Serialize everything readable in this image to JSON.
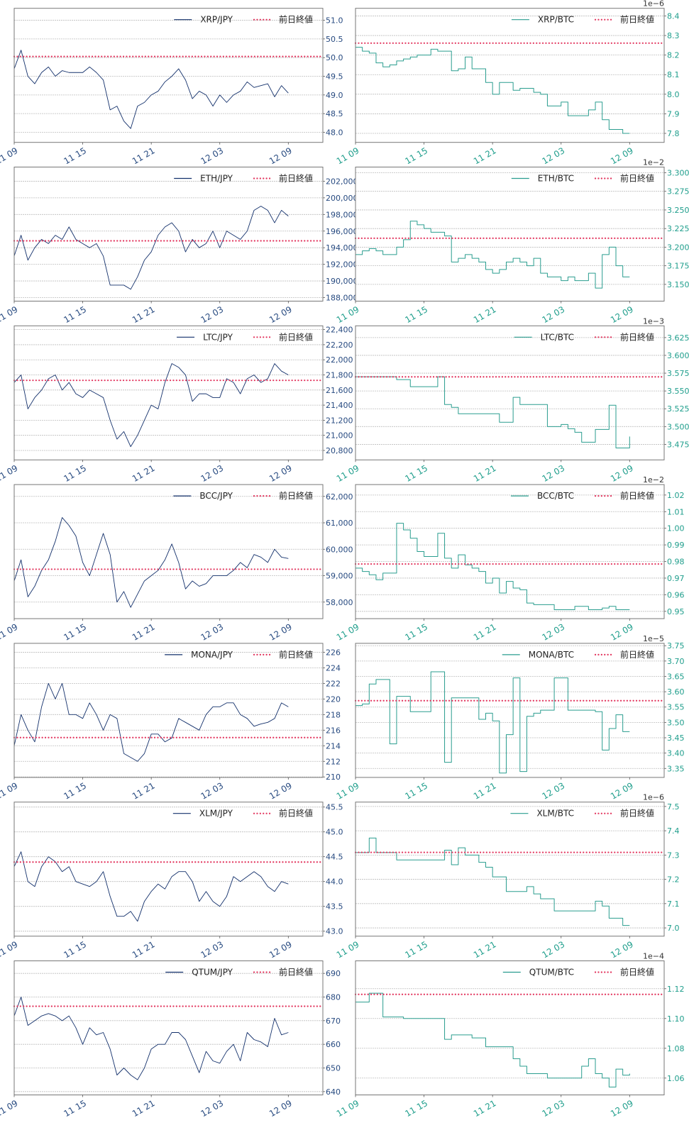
{
  "x_tick_labels": [
    "11 09",
    "11 15",
    "11 21",
    "12 03",
    "12 09"
  ],
  "prev_close_label": "前日終値",
  "colors": {
    "jpy_series": "#13306b",
    "btc_series": "#2a9d8f",
    "prev_close": "#e2335c",
    "jpy_ticks": "#274a80",
    "btc_ticks": "#1f9e8c",
    "grid": "#bdbdbd",
    "frame": "#777777"
  },
  "chart_data": [
    {
      "type": "line",
      "series_name": "XRP/JPY",
      "quote": "JPY",
      "step": false,
      "legend": "top-right",
      "grid": "horizontal",
      "x_start": "11 09",
      "x_end": "12 09",
      "ylim": [
        47.73,
        51.32
      ],
      "prev_close": 50.03,
      "yticks": [
        48.0,
        48.5,
        49.0,
        49.5,
        50.0,
        50.5,
        51.0
      ],
      "ytick_labels": [
        "48.0",
        "48.5",
        "49.0",
        "49.5",
        "50.0",
        "50.5",
        "51.0"
      ],
      "values": [
        49.7,
        50.2,
        49.5,
        49.3,
        49.6,
        49.75,
        49.5,
        49.65,
        49.6,
        49.6,
        49.6,
        49.75,
        49.6,
        49.4,
        48.6,
        48.7,
        48.3,
        48.1,
        48.7,
        48.8,
        49.0,
        49.1,
        49.35,
        49.5,
        49.7,
        49.4,
        48.9,
        49.1,
        49.0,
        48.7,
        49.0,
        48.8,
        49.0,
        49.1,
        49.35,
        49.2,
        49.25,
        49.3,
        48.95,
        49.25,
        49.05
      ]
    },
    {
      "type": "line",
      "series_name": "XRP/BTC",
      "quote": "BTC",
      "step": true,
      "legend": "top-right",
      "grid": "horizontal",
      "x_start": "11 09",
      "x_end": "12 09",
      "offset_label": "1e−6",
      "ylim": [
        7.754,
        8.439
      ],
      "prev_close": 8.261,
      "yticks": [
        7.8,
        7.9,
        8.0,
        8.1,
        8.2,
        8.3,
        8.4
      ],
      "ytick_labels": [
        "7.8",
        "7.9",
        "8.0",
        "8.1",
        "8.2",
        "8.3",
        "8.4"
      ],
      "values": [
        8.24,
        8.22,
        8.21,
        8.16,
        8.14,
        8.15,
        8.17,
        8.18,
        8.19,
        8.2,
        8.2,
        8.23,
        8.22,
        8.22,
        8.12,
        8.13,
        8.19,
        8.13,
        8.13,
        8.06,
        8.0,
        8.06,
        8.06,
        8.02,
        8.03,
        8.03,
        8.01,
        8.0,
        7.94,
        7.94,
        7.96,
        7.89,
        7.89,
        7.89,
        7.92,
        7.96,
        7.87,
        7.82,
        7.82,
        7.8,
        7.8
      ]
    },
    {
      "type": "line",
      "series_name": "ETH/JPY",
      "quote": "JPY",
      "step": false,
      "legend": "top-right",
      "grid": "horizontal",
      "x_start": "11 09",
      "x_end": "12 09",
      "ylim": [
        187575,
        203700
      ],
      "prev_close": 194830,
      "yticks": [
        188000,
        190000,
        192000,
        194000,
        196000,
        198000,
        200000,
        202000
      ],
      "ytick_labels": [
        "188,000",
        "190,000",
        "192,000",
        "194,000",
        "196,000",
        "198,000",
        "200,000",
        "202,000"
      ],
      "values": [
        193000,
        195500,
        192500,
        194000,
        195000,
        194500,
        195500,
        195000,
        196500,
        195000,
        194500,
        194000,
        194500,
        193000,
        189500,
        189500,
        189500,
        189000,
        190500,
        192500,
        193500,
        195500,
        196500,
        197000,
        196000,
        193500,
        195000,
        194000,
        194500,
        196000,
        194000,
        196000,
        195500,
        195000,
        196000,
        198500,
        199000,
        198500,
        197000,
        198500,
        197800
      ]
    },
    {
      "type": "line",
      "series_name": "ETH/BTC",
      "quote": "BTC",
      "step": true,
      "legend": "top-right",
      "grid": "horizontal",
      "x_start": "11 09",
      "x_end": "12 09",
      "offset_label": "1e−2",
      "ylim": [
        3.1275,
        3.3076
      ],
      "prev_close": 3.212,
      "yticks": [
        3.15,
        3.175,
        3.2,
        3.225,
        3.25,
        3.275,
        3.3
      ],
      "ytick_labels": [
        "3.150",
        "3.175",
        "3.200",
        "3.225",
        "3.250",
        "3.275",
        "3.300"
      ],
      "values": [
        3.19,
        3.195,
        3.198,
        3.195,
        3.19,
        3.19,
        3.2,
        3.21,
        3.235,
        3.23,
        3.225,
        3.22,
        3.22,
        3.215,
        3.18,
        3.185,
        3.19,
        3.185,
        3.18,
        3.17,
        3.165,
        3.17,
        3.18,
        3.185,
        3.18,
        3.175,
        3.185,
        3.165,
        3.16,
        3.16,
        3.155,
        3.16,
        3.155,
        3.155,
        3.165,
        3.145,
        3.19,
        3.2,
        3.175,
        3.16,
        3.16
      ]
    },
    {
      "type": "line",
      "series_name": "LTC/JPY",
      "quote": "JPY",
      "step": false,
      "legend": "top-right",
      "grid": "horizontal",
      "x_start": "11 09",
      "x_end": "12 09",
      "ylim": [
        20675,
        22450
      ],
      "prev_close": 21728,
      "yticks": [
        20800,
        21000,
        21200,
        21400,
        21600,
        21800,
        22000,
        22200,
        22400
      ],
      "ytick_labels": [
        "20,800",
        "21,000",
        "21,200",
        "21,400",
        "21,600",
        "21,800",
        "22,000",
        "22,200",
        "22,400"
      ],
      "values": [
        21700,
        21800,
        21350,
        21500,
        21600,
        21750,
        21800,
        21600,
        21700,
        21550,
        21500,
        21600,
        21550,
        21500,
        21200,
        20950,
        21050,
        20850,
        21000,
        21200,
        21400,
        21350,
        21700,
        21950,
        21900,
        21800,
        21450,
        21550,
        21550,
        21500,
        21500,
        21750,
        21700,
        21550,
        21750,
        21800,
        21700,
        21750,
        21950,
        21850,
        21800
      ]
    },
    {
      "type": "line",
      "series_name": "LTC/BTC",
      "quote": "BTC",
      "step": true,
      "legend": "top-right",
      "grid": "horizontal",
      "x_start": "11 09",
      "x_end": "12 09",
      "offset_label": "1e−3",
      "ylim": [
        3.4532,
        3.6415
      ],
      "prev_close": 3.5698,
      "yticks": [
        3.475,
        3.5,
        3.525,
        3.55,
        3.575,
        3.6,
        3.625
      ],
      "ytick_labels": [
        "3.475",
        "3.500",
        "3.525",
        "3.550",
        "3.575",
        "3.600",
        "3.625"
      ],
      "values": [
        3.57,
        3.57,
        3.57,
        3.57,
        3.57,
        3.57,
        3.566,
        3.566,
        3.556,
        3.556,
        3.556,
        3.556,
        3.57,
        3.531,
        3.527,
        3.518,
        3.518,
        3.518,
        3.518,
        3.518,
        3.518,
        3.506,
        3.506,
        3.541,
        3.531,
        3.531,
        3.531,
        3.531,
        3.5,
        3.5,
        3.503,
        3.497,
        3.492,
        3.478,
        3.478,
        3.496,
        3.496,
        3.53,
        3.47,
        3.47,
        3.486
      ]
    },
    {
      "type": "line",
      "series_name": "BCC/JPY",
      "quote": "JPY",
      "step": false,
      "legend": "top-right",
      "grid": "horizontal",
      "x_start": "11 09",
      "x_end": "12 09",
      "ylim": [
        57374,
        62447
      ],
      "prev_close": 59244,
      "yticks": [
        58000,
        59000,
        60000,
        61000,
        62000
      ],
      "ytick_labels": [
        "58,000",
        "59,000",
        "60,000",
        "61,000",
        "62,000"
      ],
      "values": [
        58800,
        59600,
        58200,
        58600,
        59200,
        59600,
        60300,
        61200,
        60900,
        60500,
        59500,
        59000,
        59800,
        60600,
        59800,
        58000,
        58400,
        57800,
        58300,
        58800,
        59000,
        59200,
        59600,
        60200,
        59500,
        58500,
        58800,
        58600,
        58700,
        59000,
        59000,
        59000,
        59200,
        59500,
        59300,
        59800,
        59700,
        59500,
        60000,
        59700,
        59650
      ]
    },
    {
      "type": "line",
      "series_name": "BCC/BTC",
      "quote": "BTC",
      "step": true,
      "legend": "top-right",
      "grid": "horizontal",
      "x_start": "11 09",
      "x_end": "12 09",
      "offset_label": "1e−2",
      "ylim": [
        0.9456,
        1.0263
      ],
      "prev_close": 0.9785,
      "yticks": [
        0.95,
        0.96,
        0.97,
        0.98,
        0.99,
        1.0,
        1.01,
        1.02
      ],
      "ytick_labels": [
        "0.95",
        "0.96",
        "0.97",
        "0.98",
        "0.99",
        "1.00",
        "1.01",
        "1.02"
      ],
      "values": [
        0.976,
        0.974,
        0.972,
        0.969,
        0.973,
        0.973,
        1.003,
        0.999,
        0.994,
        0.986,
        0.983,
        0.983,
        0.997,
        0.982,
        0.976,
        0.984,
        0.978,
        0.976,
        0.974,
        0.967,
        0.97,
        0.961,
        0.968,
        0.964,
        0.963,
        0.955,
        0.954,
        0.954,
        0.954,
        0.951,
        0.951,
        0.951,
        0.953,
        0.953,
        0.951,
        0.951,
        0.952,
        0.953,
        0.951,
        0.951,
        0.951
      ]
    },
    {
      "type": "line",
      "series_name": "MONA/JPY",
      "quote": "JPY",
      "step": false,
      "legend": "top-right",
      "grid": "horizontal",
      "x_start": "11 09",
      "x_end": "12 09",
      "ylim": [
        209.94,
        227.14
      ],
      "prev_close": 215.05,
      "yticks": [
        210,
        212,
        214,
        216,
        218,
        220,
        222,
        224,
        226
      ],
      "ytick_labels": [
        "210",
        "212",
        "214",
        "216",
        "218",
        "220",
        "222",
        "224",
        "226"
      ],
      "values": [
        214,
        218,
        216,
        214.5,
        219,
        222,
        220,
        222,
        218,
        218,
        217.5,
        219.5,
        218,
        216,
        218,
        217.5,
        213,
        212.5,
        212,
        213,
        215.5,
        215.5,
        214.5,
        215,
        217.5,
        217,
        216.5,
        216,
        218,
        219,
        219,
        219.5,
        219.5,
        218,
        217.5,
        216.5,
        216.8,
        217,
        217.5,
        219.5,
        219
      ]
    },
    {
      "type": "line",
      "series_name": "MONA/BTC",
      "quote": "BTC",
      "step": true,
      "legend": "top-right",
      "grid": "horizontal",
      "x_start": "11 09",
      "x_end": "12 09",
      "offset_label": "1e−5",
      "ylim": [
        3.3208,
        3.7577
      ],
      "prev_close": 3.5708,
      "yticks": [
        3.35,
        3.4,
        3.45,
        3.5,
        3.55,
        3.6,
        3.65,
        3.7,
        3.75
      ],
      "ytick_labels": [
        "3.35",
        "3.40",
        "3.45",
        "3.50",
        "3.55",
        "3.60",
        "3.65",
        "3.70",
        "3.75"
      ],
      "values": [
        3.555,
        3.56,
        3.625,
        3.64,
        3.64,
        3.43,
        3.585,
        3.585,
        3.535,
        3.535,
        3.535,
        3.665,
        3.665,
        3.37,
        3.58,
        3.58,
        3.58,
        3.58,
        3.51,
        3.53,
        3.505,
        3.335,
        3.46,
        3.645,
        3.34,
        3.52,
        3.53,
        3.54,
        3.54,
        3.645,
        3.645,
        3.54,
        3.54,
        3.54,
        3.54,
        3.535,
        3.41,
        3.48,
        3.525,
        3.47,
        3.47
      ]
    },
    {
      "type": "line",
      "series_name": "XLM/JPY",
      "quote": "JPY",
      "step": false,
      "legend": "top-right",
      "grid": "horizontal",
      "x_start": "11 09",
      "x_end": "12 09",
      "ylim": [
        42.9,
        45.6
      ],
      "prev_close": 44.392,
      "yticks": [
        43.0,
        43.5,
        44.0,
        44.5,
        45.0,
        45.5
      ],
      "ytick_labels": [
        "43.0",
        "43.5",
        "44.0",
        "44.5",
        "45.0",
        "45.5"
      ],
      "values": [
        44.3,
        44.6,
        44.0,
        43.9,
        44.3,
        44.5,
        44.4,
        44.2,
        44.3,
        44.0,
        43.95,
        43.9,
        44.0,
        44.2,
        43.7,
        43.3,
        43.3,
        43.4,
        43.2,
        43.6,
        43.8,
        43.95,
        43.85,
        44.1,
        44.2,
        44.2,
        44.0,
        43.6,
        43.8,
        43.6,
        43.5,
        43.7,
        44.1,
        44.0,
        44.1,
        44.2,
        44.1,
        43.9,
        43.8,
        44.0,
        43.95
      ]
    },
    {
      "type": "line",
      "series_name": "XLM/BTC",
      "quote": "BTC",
      "step": true,
      "legend": "top-right",
      "grid": "horizontal",
      "x_start": "11 09",
      "x_end": "12 09",
      "offset_label": "1e−6",
      "ylim": [
        6.966,
        7.518
      ],
      "prev_close": 7.311,
      "yticks": [
        7.0,
        7.1,
        7.2,
        7.3,
        7.4,
        7.5
      ],
      "ytick_labels": [
        "7.0",
        "7.1",
        "7.2",
        "7.3",
        "7.4",
        "7.5"
      ],
      "values": [
        7.31,
        7.31,
        7.37,
        7.31,
        7.31,
        7.31,
        7.28,
        7.28,
        7.28,
        7.28,
        7.28,
        7.28,
        7.28,
        7.32,
        7.26,
        7.33,
        7.3,
        7.3,
        7.27,
        7.25,
        7.21,
        7.21,
        7.15,
        7.15,
        7.15,
        7.17,
        7.14,
        7.12,
        7.12,
        7.07,
        7.07,
        7.07,
        7.07,
        7.07,
        7.07,
        7.11,
        7.09,
        7.04,
        7.04,
        7.01,
        7.01
      ]
    },
    {
      "type": "line",
      "series_name": "QTUM/JPY",
      "quote": "JPY",
      "step": false,
      "legend": "top-right",
      "grid": "horizontal",
      "x_start": "11 09",
      "x_end": "12 09",
      "ylim": [
        638.6,
        695.3
      ],
      "prev_close": 676.1,
      "yticks": [
        640,
        650,
        660,
        670,
        680,
        690
      ],
      "ytick_labels": [
        "640",
        "650",
        "660",
        "670",
        "680",
        "690"
      ],
      "values": [
        672,
        680,
        668,
        670,
        672,
        673,
        672,
        670,
        672,
        667,
        660,
        667,
        664,
        665,
        658,
        647,
        650,
        647,
        645,
        650,
        658,
        660,
        660,
        665,
        665,
        662,
        655,
        648,
        657,
        653,
        652,
        657,
        660,
        653,
        665,
        662,
        661,
        659,
        671,
        664,
        665
      ]
    },
    {
      "type": "line",
      "series_name": "QTUM/BTC",
      "quote": "BTC",
      "step": true,
      "legend": "top-right",
      "grid": "horizontal",
      "x_start": "11 09",
      "x_end": "12 09",
      "offset_label": "1e−4",
      "ylim": [
        1.0487,
        1.1387
      ],
      "prev_close": 1.1162,
      "yticks": [
        1.06,
        1.08,
        1.1,
        1.12
      ],
      "ytick_labels": [
        "1.06",
        "1.08",
        "1.10",
        "1.12"
      ],
      "values": [
        1.111,
        1.111,
        1.117,
        1.117,
        1.101,
        1.101,
        1.101,
        1.1,
        1.1,
        1.1,
        1.1,
        1.1,
        1.1,
        1.086,
        1.089,
        1.089,
        1.089,
        1.087,
        1.087,
        1.081,
        1.081,
        1.081,
        1.081,
        1.073,
        1.068,
        1.063,
        1.063,
        1.063,
        1.06,
        1.06,
        1.06,
        1.06,
        1.06,
        1.068,
        1.073,
        1.063,
        1.06,
        1.054,
        1.066,
        1.062,
        1.063
      ]
    }
  ]
}
